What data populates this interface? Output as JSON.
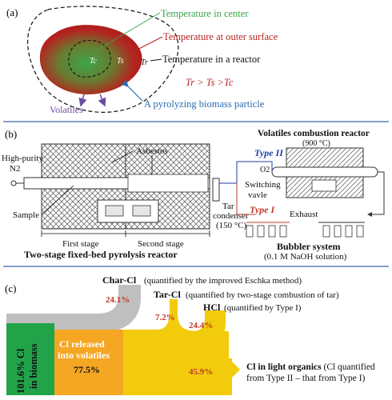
{
  "panel_a": {
    "label": "(a)",
    "temp_center": "Temperature in center",
    "temp_outer": "Temperature at outer surface",
    "temp_reactor": "Temperature in a reactor",
    "relation": "Tr > Ts >Tc",
    "volatiles": "Volatiles",
    "particle": "A pyrolyzing biomass particle",
    "tc": "Tc",
    "ts": "Ts",
    "tr": "Tr",
    "colors": {
      "green": "#3aa64a",
      "red": "#b5231f",
      "blue": "#2b6cb0",
      "purple": "#6a4ca0"
    }
  },
  "panel_b": {
    "label": "(b)",
    "asbestos": "Asbestos",
    "combustion_title": "Volatiles combustion reactor",
    "combustion_temp": "(900 °C)",
    "type2": "Type II",
    "type1": "Type I",
    "gas_line1": "High-purity",
    "gas_line2": "N2",
    "o2": "O2",
    "switching1": "Switching",
    "switching2": "vavle",
    "sample": "Sample",
    "tar1": "Tar",
    "tar2": "condenser",
    "tar3": "(150 °C)",
    "exhaust": "Exhaust",
    "first_stage": "First stage",
    "second_stage": "Second stage",
    "reactor": "Two-stage fixed-bed pyrolysis reactor",
    "bubbler1": "Bubbler system",
    "bubbler2": "(0.1 M NaOH solution)"
  },
  "panel_c": {
    "label": "(c)",
    "biomass_pct": "101.6% Cl",
    "biomass_txt": "in biomass",
    "released_1": "Cl released",
    "released_2": "into volatiles",
    "released_pct": "77.5%",
    "char_label": "Char-Cl",
    "char_desc": "(quantified by the improved Eschka method)",
    "char_pct": "24.1%",
    "tar_label": "Tar-Cl",
    "tar_desc": "(quantified by two-stage combustion of tar)",
    "tar_pct": "7.2%",
    "hcl_label": "HCl",
    "hcl_desc": "(quantified by Type I)",
    "hcl_pct": "24.4%",
    "organics_pct": "45.9%",
    "organics_1a": "Cl in light organics",
    "organics_1b": " (Cl quantified",
    "organics_2": "from Type II – that from Type I)",
    "colors": {
      "green": "#22a34a",
      "orange": "#f5a623",
      "yellow": "#f2cc0c",
      "gray": "#bfbfbf",
      "pct_red": "#c0392b"
    }
  }
}
